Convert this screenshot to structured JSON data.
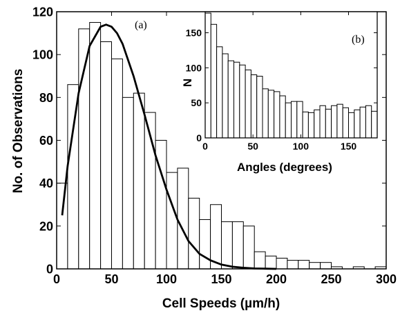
{
  "chart_data": [
    {
      "type": "bar",
      "panel_label": "(a)",
      "xlabel": "Cell Speeds (µm/h)",
      "ylabel": "No. of Observations",
      "xlim": [
        0,
        300
      ],
      "ylim": [
        0,
        120
      ],
      "xticks": [
        0,
        50,
        100,
        150,
        200,
        250,
        300
      ],
      "yticks": [
        0,
        20,
        40,
        60,
        80,
        100,
        120
      ],
      "bin_width": 10,
      "bin_starts": [
        0,
        10,
        20,
        30,
        40,
        50,
        60,
        70,
        80,
        90,
        100,
        110,
        120,
        130,
        140,
        150,
        160,
        170,
        180,
        190,
        200,
        210,
        220,
        230,
        240,
        250,
        260,
        270,
        280,
        290
      ],
      "values": [
        40,
        86,
        112,
        115,
        106,
        98,
        80,
        82,
        73,
        60,
        45,
        47,
        33,
        23,
        30,
        22,
        22,
        20,
        8,
        6,
        5,
        4,
        4,
        3,
        3,
        1,
        0,
        1,
        0,
        1
      ],
      "fit_curve": {
        "x": [
          5,
          10,
          20,
          30,
          40,
          45,
          50,
          55,
          60,
          70,
          80,
          90,
          100,
          110,
          120,
          130,
          140,
          150,
          160,
          170,
          180,
          190,
          200
        ],
        "y": [
          25,
          48,
          82,
          104,
          113,
          114,
          113,
          110,
          105,
          90,
          72,
          53,
          37,
          23,
          13,
          7,
          4,
          2,
          1,
          0.5,
          0.2,
          0.1,
          0
        ]
      },
      "grid": false
    },
    {
      "type": "bar",
      "panel_label": "(b)",
      "xlabel": "Angles (degrees)",
      "ylabel": "N",
      "xlim": [
        0,
        180
      ],
      "ylim": [
        0,
        180
      ],
      "xticks": [
        0,
        50,
        100,
        150
      ],
      "yticks": [
        0,
        50,
        100,
        150
      ],
      "bin_width": 6,
      "bin_starts": [
        0,
        6,
        12,
        18,
        24,
        30,
        36,
        42,
        48,
        54,
        60,
        66,
        72,
        78,
        84,
        90,
        96,
        102,
        108,
        114,
        120,
        126,
        132,
        138,
        144,
        150,
        156,
        162,
        168,
        174
      ],
      "values": [
        178,
        162,
        130,
        120,
        110,
        108,
        104,
        97,
        90,
        88,
        70,
        68,
        66,
        60,
        50,
        52,
        52,
        37,
        36,
        40,
        46,
        41,
        46,
        48,
        43,
        36,
        40,
        44,
        46,
        38
      ],
      "grid": false
    }
  ]
}
